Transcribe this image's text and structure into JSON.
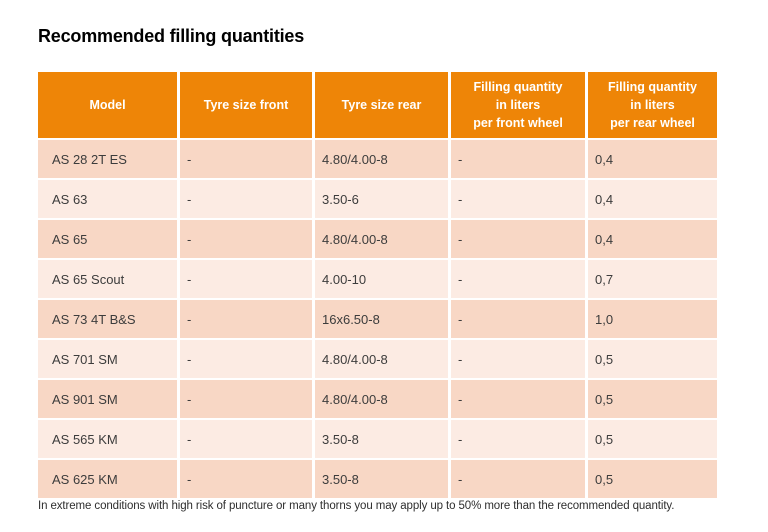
{
  "page": {
    "title": "Recommended filling quantities",
    "footnote": "In extreme conditions with high risk of puncture or many thorns you may apply up to 50% more than the recommended quantity."
  },
  "colors": {
    "header_bg": "#EE8507",
    "row_dark": "#F8D7C5",
    "row_light": "#FCEBE3",
    "header_text": "#FFFFFF",
    "body_text": "#3C3C3C"
  },
  "table": {
    "columns": [
      "Model",
      "Tyre size front",
      "Tyre size rear",
      "Filling quantity\nin liters\nper front wheel",
      "Filling quantity\nin liters\nper rear wheel"
    ],
    "rows": [
      [
        "AS 28 2T ES",
        "-",
        "4.80/4.00-8",
        "-",
        "0,4"
      ],
      [
        "AS 63",
        "-",
        "3.50-6",
        "-",
        "0,4"
      ],
      [
        "AS 65",
        "-",
        "4.80/4.00-8",
        "-",
        "0,4"
      ],
      [
        "AS 65 Scout",
        "-",
        "4.00-10",
        "-",
        "0,7"
      ],
      [
        "AS 73 4T B&S",
        "-",
        "16x6.50-8",
        "-",
        "1,0"
      ],
      [
        "AS 701 SM",
        "-",
        "4.80/4.00-8",
        "-",
        "0,5"
      ],
      [
        "AS 901 SM",
        "-",
        "4.80/4.00-8",
        "-",
        "0,5"
      ],
      [
        "AS 565 KM",
        "-",
        "3.50-8",
        "-",
        "0,5"
      ],
      [
        "AS 625 KM",
        "-",
        "3.50-8",
        "-",
        "0,5"
      ]
    ]
  }
}
